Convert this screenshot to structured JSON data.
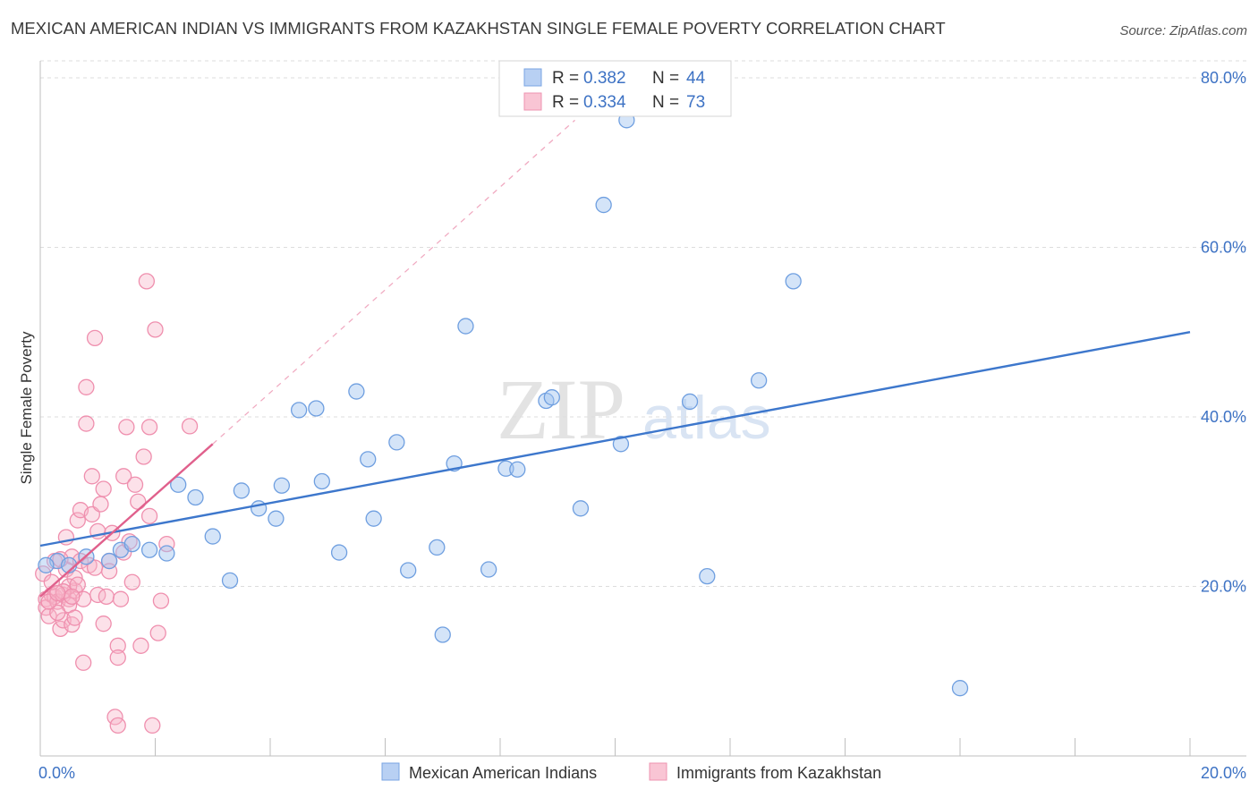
{
  "chart_data": {
    "type": "scatter",
    "title": "MEXICAN AMERICAN INDIAN VS IMMIGRANTS FROM KAZAKHSTAN SINGLE FEMALE POVERTY CORRELATION CHART",
    "source": "Source: ZipAtlas.com",
    "ylabel": "Single Female Poverty",
    "xlim": [
      0,
      20
    ],
    "ylim": [
      0,
      82
    ],
    "x_tick_labels": [
      "0.0%",
      "20.0%"
    ],
    "y_ticks": [
      20,
      40,
      60,
      80
    ],
    "y_tick_labels": [
      "20.0%",
      "40.0%",
      "60.0%",
      "80.0%"
    ],
    "watermark": {
      "zip": "ZIP",
      "atlas": "atlas"
    },
    "legend": {
      "r_label": "R =",
      "n_label": "N =",
      "entries": [
        {
          "r": "0.382",
          "n": "44"
        },
        {
          "r": "0.334",
          "n": "73"
        }
      ]
    },
    "series": [
      {
        "name": "Mexican American Indians",
        "color": "#3d77cc",
        "fill": "rgba(160,195,240,0.45)",
        "stroke": "#6f9fe0",
        "trend": {
          "x0": 0,
          "y0": 24.8,
          "x1": 20,
          "y1": 50.0
        },
        "points": [
          [
            0.3,
            23.0
          ],
          [
            0.5,
            22.5
          ],
          [
            0.8,
            23.5
          ],
          [
            1.2,
            23.0
          ],
          [
            1.4,
            24.3
          ],
          [
            1.6,
            25.0
          ],
          [
            1.9,
            24.3
          ],
          [
            2.2,
            23.9
          ],
          [
            2.4,
            32.0
          ],
          [
            2.7,
            30.5
          ],
          [
            3.0,
            25.9
          ],
          [
            3.3,
            20.7
          ],
          [
            3.5,
            31.3
          ],
          [
            3.8,
            29.2
          ],
          [
            4.1,
            28.0
          ],
          [
            4.2,
            31.9
          ],
          [
            4.5,
            40.8
          ],
          [
            4.8,
            41.0
          ],
          [
            4.9,
            32.4
          ],
          [
            5.2,
            24.0
          ],
          [
            5.5,
            43.0
          ],
          [
            5.7,
            35.0
          ],
          [
            5.8,
            28.0
          ],
          [
            6.2,
            37.0
          ],
          [
            6.4,
            21.9
          ],
          [
            6.9,
            24.6
          ],
          [
            7.0,
            14.3
          ],
          [
            7.2,
            34.5
          ],
          [
            7.4,
            50.7
          ],
          [
            7.8,
            22.0
          ],
          [
            8.1,
            33.9
          ],
          [
            8.3,
            33.8
          ],
          [
            8.8,
            41.9
          ],
          [
            8.9,
            42.3
          ],
          [
            9.4,
            29.2
          ],
          [
            9.8,
            65.0
          ],
          [
            10.1,
            36.8
          ],
          [
            10.2,
            75.0
          ],
          [
            11.3,
            41.8
          ],
          [
            11.6,
            21.2
          ],
          [
            12.5,
            44.3
          ],
          [
            13.1,
            56.0
          ],
          [
            16.0,
            8.0
          ],
          [
            0.1,
            22.5
          ]
        ]
      },
      {
        "name": "Immigrants from Kazakhstan",
        "color": "#e0608c",
        "fill": "rgba(248,180,200,0.40)",
        "stroke": "#ef8fae",
        "trend": {
          "x0": 0,
          "y0": 18.8,
          "x1": 3.0,
          "y1": 36.8
        },
        "trend_ext": {
          "x0": 3.0,
          "y0": 36.8,
          "x1": 9.3,
          "y1": 75.0
        },
        "points": [
          [
            0.05,
            21.5
          ],
          [
            0.1,
            18.5
          ],
          [
            0.1,
            17.5
          ],
          [
            0.15,
            16.5
          ],
          [
            0.2,
            19.0
          ],
          [
            0.25,
            23.0
          ],
          [
            0.25,
            18.8
          ],
          [
            0.3,
            18.2
          ],
          [
            0.35,
            15.0
          ],
          [
            0.4,
            19.0
          ],
          [
            0.4,
            16.0
          ],
          [
            0.45,
            22.0
          ],
          [
            0.45,
            25.8
          ],
          [
            0.5,
            18.5
          ],
          [
            0.5,
            17.8
          ],
          [
            0.55,
            23.5
          ],
          [
            0.55,
            15.5
          ],
          [
            0.6,
            19.5
          ],
          [
            0.6,
            16.3
          ],
          [
            0.6,
            21.0
          ],
          [
            0.65,
            27.8
          ],
          [
            0.7,
            23.0
          ],
          [
            0.7,
            29.0
          ],
          [
            0.75,
            18.5
          ],
          [
            0.75,
            11.0
          ],
          [
            0.8,
            39.2
          ],
          [
            0.8,
            43.5
          ],
          [
            0.85,
            22.5
          ],
          [
            0.9,
            33.0
          ],
          [
            0.9,
            28.5
          ],
          [
            0.95,
            49.3
          ],
          [
            0.95,
            22.2
          ],
          [
            1.0,
            19.0
          ],
          [
            1.0,
            26.5
          ],
          [
            1.05,
            29.7
          ],
          [
            1.1,
            31.5
          ],
          [
            1.1,
            15.6
          ],
          [
            1.15,
            18.8
          ],
          [
            1.2,
            23.0
          ],
          [
            1.2,
            21.8
          ],
          [
            1.25,
            26.3
          ],
          [
            1.3,
            4.6
          ],
          [
            1.35,
            3.6
          ],
          [
            1.35,
            13.0
          ],
          [
            1.35,
            11.6
          ],
          [
            1.4,
            18.5
          ],
          [
            1.45,
            33.0
          ],
          [
            1.45,
            24.0
          ],
          [
            1.5,
            38.8
          ],
          [
            1.55,
            25.3
          ],
          [
            1.6,
            20.5
          ],
          [
            1.65,
            32.0
          ],
          [
            1.7,
            30.0
          ],
          [
            1.75,
            13.0
          ],
          [
            1.8,
            35.3
          ],
          [
            1.9,
            28.3
          ],
          [
            1.9,
            38.8
          ],
          [
            1.95,
            3.6
          ],
          [
            2.0,
            50.3
          ],
          [
            2.05,
            14.5
          ],
          [
            2.1,
            18.3
          ],
          [
            2.2,
            25.0
          ],
          [
            1.85,
            56.0
          ],
          [
            2.6,
            38.9
          ],
          [
            0.2,
            20.5
          ],
          [
            0.3,
            16.9
          ],
          [
            0.5,
            20.0
          ],
          [
            0.35,
            23.2
          ],
          [
            0.15,
            18.2
          ],
          [
            0.65,
            20.2
          ],
          [
            0.4,
            19.4
          ],
          [
            0.55,
            18.8
          ],
          [
            0.3,
            19.2
          ]
        ]
      }
    ]
  }
}
